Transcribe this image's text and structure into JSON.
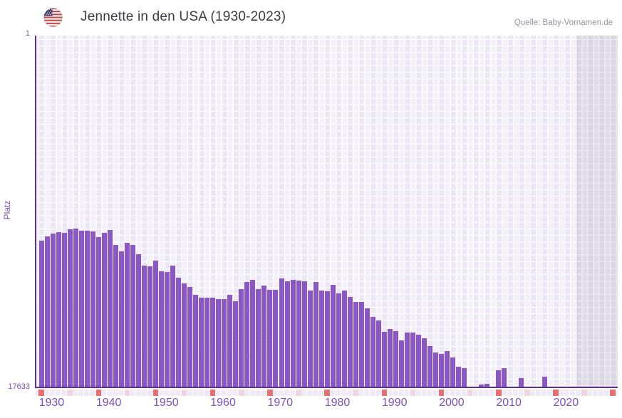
{
  "header": {
    "title": "Jennette in den USA (1930-2023)",
    "source": "Quelle: Baby-Vornamen.de",
    "flag_icon": "us-flag-icon"
  },
  "chart_data": {
    "type": "bar",
    "title": "Jennette in den USA (1930-2023)",
    "xlabel": "",
    "ylabel": "Platz",
    "y_axis": {
      "top_label": "1",
      "bottom_label": "17633",
      "min": 1,
      "max": 17633,
      "inverted": true
    },
    "x_axis": {
      "tick_labels": [
        "1930",
        "1940",
        "1950",
        "1960",
        "1970",
        "1980",
        "1990",
        "2000",
        "2010",
        "2020"
      ],
      "major_tick_years": [
        1930,
        1940,
        1950,
        1960,
        1970,
        1980,
        1990,
        2000,
        2010,
        2020,
        2030
      ],
      "minor_tick_years": [
        1935,
        1945,
        1955,
        1965,
        1975,
        1985,
        1995,
        2005,
        2015,
        2025
      ],
      "first_year": 1930,
      "last_grid_year": 2031
    },
    "grid": true,
    "legend": false,
    "note": "Bars show rank (Platz) per year; rank 1 is best (tallest bar scale is inverted). Years with no bar were unranked.",
    "years": [
      1930,
      1931,
      1932,
      1933,
      1934,
      1935,
      1936,
      1937,
      1938,
      1939,
      1940,
      1941,
      1942,
      1943,
      1944,
      1945,
      1946,
      1947,
      1948,
      1949,
      1950,
      1951,
      1952,
      1953,
      1954,
      1955,
      1956,
      1957,
      1958,
      1959,
      1960,
      1961,
      1962,
      1963,
      1964,
      1965,
      1966,
      1967,
      1968,
      1969,
      1970,
      1971,
      1972,
      1973,
      1974,
      1975,
      1976,
      1977,
      1978,
      1979,
      1980,
      1981,
      1982,
      1983,
      1984,
      1985,
      1986,
      1987,
      1988,
      1989,
      1990,
      1991,
      1992,
      1993,
      1994,
      1995,
      1996,
      1997,
      1998,
      1999,
      2000,
      2001,
      2002,
      2003,
      2004,
      2005,
      2006,
      2007,
      2008,
      2009,
      2010,
      2011,
      2012,
      2013,
      2014,
      2015,
      2016,
      2017,
      2018,
      2019,
      2020,
      2021,
      2022,
      2023
    ],
    "ranks": [
      10300,
      10080,
      9940,
      9870,
      9900,
      9725,
      9690,
      9795,
      9795,
      9830,
      10115,
      9900,
      9760,
      10510,
      10830,
      10400,
      10510,
      10970,
      11540,
      11575,
      11290,
      11825,
      11860,
      11540,
      12145,
      12430,
      12610,
      13035,
      13145,
      13145,
      13145,
      13250,
      13215,
      13035,
      13355,
      12715,
      12360,
      12250,
      12715,
      12540,
      12785,
      12750,
      12180,
      12325,
      12250,
      12290,
      12325,
      12820,
      12360,
      12820,
      12855,
      12505,
      12930,
      12820,
      13110,
      13390,
      13390,
      13680,
      14140,
      14320,
      14890,
      14745,
      14855,
      15315,
      14925,
      14925,
      15030,
      15210,
      15600,
      15920,
      15990,
      15850,
      16170,
      16635,
      16705,
      null,
      null,
      17525,
      17490,
      null,
      16810,
      16705,
      null,
      null,
      17205,
      null,
      null,
      null,
      17135,
      null,
      null,
      null,
      null,
      null
    ]
  },
  "colors": {
    "bar": "#8a57c5",
    "axis": "#5e2d9e",
    "axis_labels": "#7e4fb5",
    "title_text": "#3b3b45",
    "source_text": "#97949e",
    "grid_cell_a": "#ece7f4",
    "grid_cell_b": "#f3f0fa",
    "future_band_overlay": "rgba(100,92,125,0.13)",
    "major_tick": "#e57070",
    "minor_tick": "#f0d6e0"
  }
}
